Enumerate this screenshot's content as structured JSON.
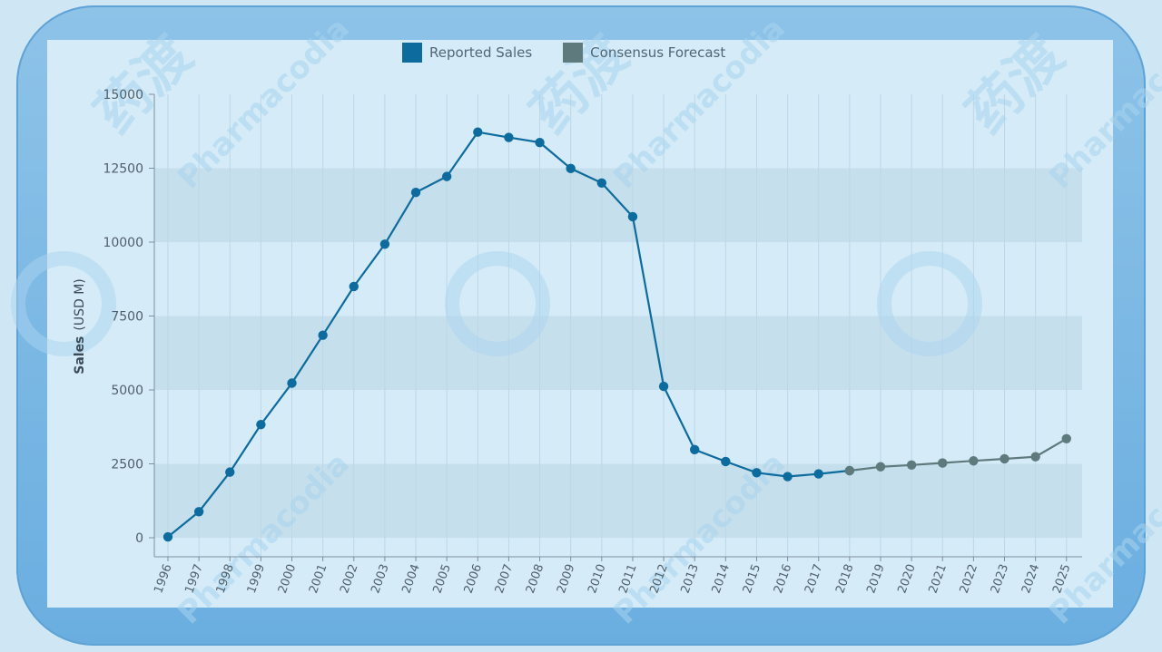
{
  "chart_data": {
    "type": "line",
    "title": "",
    "xlabel": "",
    "ylabel": "Sales",
    "ylabel_unit": "(USD M)",
    "ylim": [
      0,
      15000
    ],
    "yticks": [
      "0",
      "2500",
      "5000",
      "7500",
      "10000",
      "12500",
      "15000"
    ],
    "categories": [
      "1996",
      "1997",
      "1998",
      "1999",
      "2000",
      "2001",
      "2002",
      "2003",
      "2004",
      "2005",
      "2006",
      "2007",
      "2008",
      "2009",
      "2010",
      "2011",
      "2012",
      "2013",
      "2014",
      "2015",
      "2016",
      "2017",
      "2018",
      "2019",
      "2020",
      "2021",
      "2022",
      "2023",
      "2024",
      "2025"
    ],
    "series": [
      {
        "name": "Reported Sales",
        "color": "#0d6b9e",
        "x": [
          "1996",
          "1997",
          "1998",
          "1999",
          "2000",
          "2001",
          "2002",
          "2003",
          "2004",
          "2005",
          "2006",
          "2007",
          "2008",
          "2009",
          "2010",
          "2011",
          "2012",
          "2013",
          "2014",
          "2015",
          "2016",
          "2017",
          "2018"
        ],
        "values": [
          30,
          880,
          2220,
          3830,
          5230,
          6850,
          8500,
          9930,
          11680,
          12220,
          13720,
          13540,
          13370,
          12490,
          12000,
          10860,
          5120,
          2980,
          2580,
          2200,
          2070,
          2160,
          2270
        ]
      },
      {
        "name": "Consensus Forecast",
        "color": "#5f7a7d",
        "x": [
          "2018",
          "2019",
          "2020",
          "2021",
          "2022",
          "2023",
          "2024",
          "2025"
        ],
        "values": [
          2270,
          2400,
          2460,
          2530,
          2600,
          2670,
          2740,
          3350
        ]
      }
    ],
    "legend_position": "top-center",
    "grid": true
  },
  "watermark": {
    "brand_text": "Pharmacodia",
    "cn_text": "药渡"
  }
}
